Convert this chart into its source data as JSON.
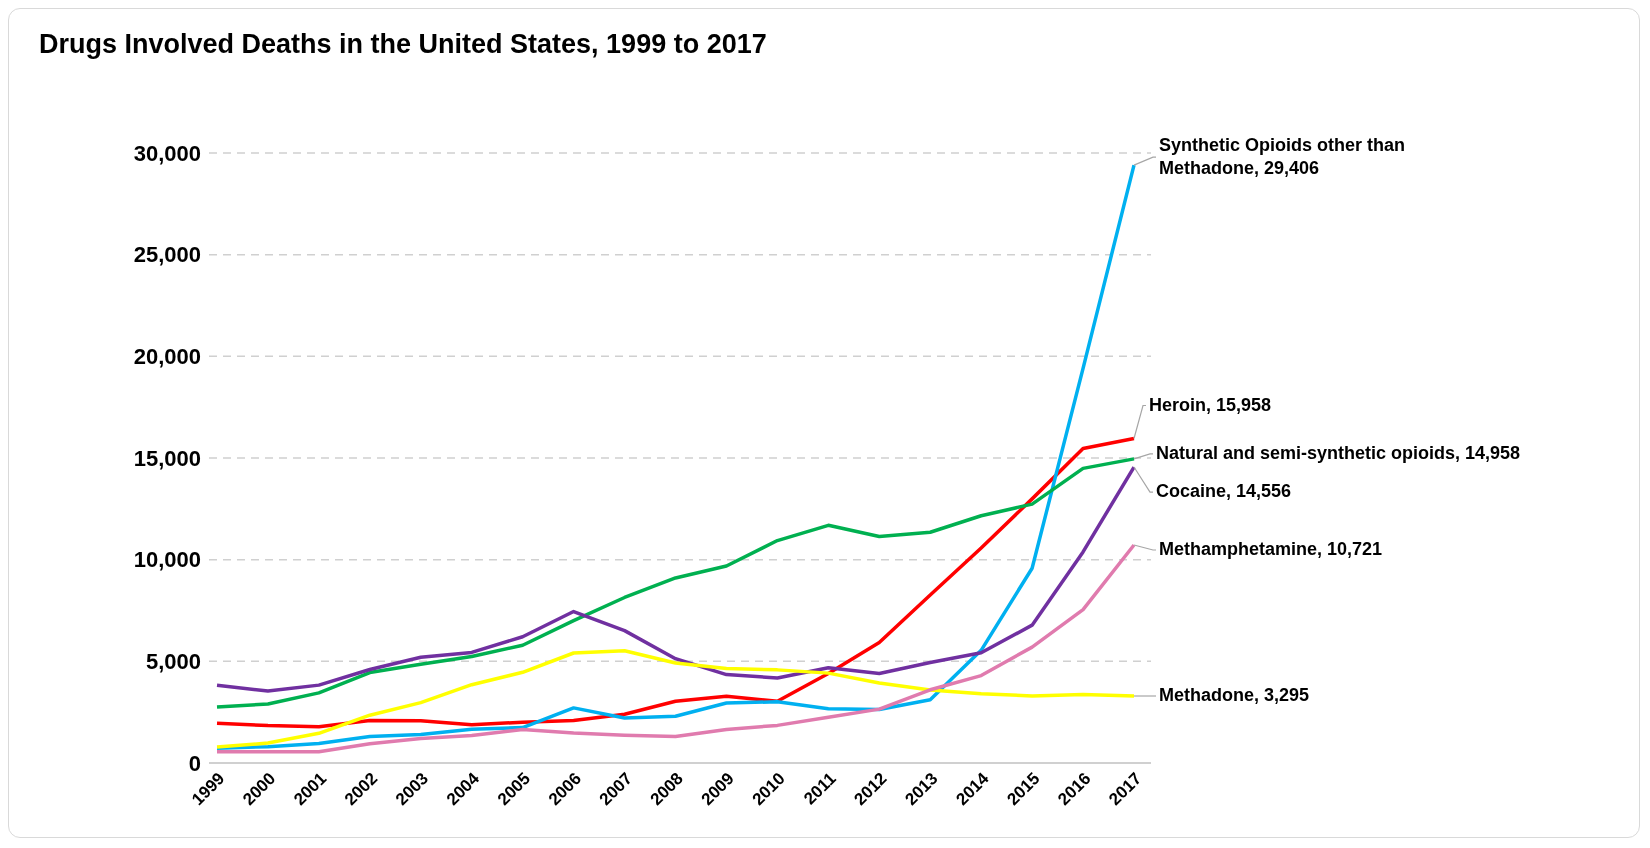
{
  "chart_data": {
    "type": "line",
    "title": "Drugs Involved Deaths in the United States, 1999 to 2017",
    "categories": [
      "1999",
      "2000",
      "2001",
      "2002",
      "2003",
      "2004",
      "2005",
      "2006",
      "2007",
      "2008",
      "2009",
      "2010",
      "2011",
      "2012",
      "2013",
      "2014",
      "2015",
      "2016",
      "2017"
    ],
    "series": [
      {
        "color": "#ff0000",
        "values": [
          1960,
          1840,
          1780,
          2090,
          2080,
          1880,
          2010,
          2090,
          2400,
          3040,
          3280,
          3040,
          4400,
          5930,
          8260,
          10570,
          12990,
          15470,
          15958
        ],
        "value_labels": [
          null,
          null,
          null,
          null,
          null,
          null,
          null,
          null,
          null,
          null,
          null,
          null,
          null,
          null,
          null,
          null,
          null,
          null,
          "Heroin, 15,958"
        ]
      },
      {
        "color": "#00b0f0",
        "values": [
          730,
          800,
          960,
          1300,
          1400,
          1660,
          1740,
          2710,
          2210,
          2300,
          2950,
          3010,
          2670,
          2630,
          3110,
          5540,
          9580,
          19410,
          29406
        ],
        "value_labels": [
          null,
          null,
          null,
          null,
          null,
          null,
          null,
          null,
          null,
          null,
          null,
          null,
          null,
          null,
          null,
          null,
          null,
          null,
          "Synthetic Opioids other than Methadone, 29,406"
        ]
      },
      {
        "color": "#00b050",
        "values": [
          2750,
          2900,
          3450,
          4450,
          4860,
          5240,
          5790,
          7000,
          8140,
          9100,
          9690,
          10940,
          11690,
          11140,
          11350,
          12160,
          12730,
          14490,
          14958
        ],
        "value_labels": [
          null,
          null,
          null,
          null,
          null,
          null,
          null,
          null,
          null,
          null,
          null,
          null,
          null,
          null,
          null,
          null,
          null,
          null,
          "Natural and semi-synthetic opioids, 14,958"
        ]
      },
      {
        "color": "#7030a0",
        "values": [
          3820,
          3540,
          3830,
          4600,
          5200,
          5440,
          6210,
          7450,
          6510,
          5130,
          4350,
          4180,
          4680,
          4400,
          4940,
          5420,
          6780,
          10380,
          14556
        ],
        "value_labels": [
          null,
          null,
          null,
          null,
          null,
          null,
          null,
          null,
          null,
          null,
          null,
          null,
          null,
          null,
          null,
          null,
          null,
          null,
          "Cocaine, 14,556"
        ]
      },
      {
        "color": "#ffff00",
        "values": [
          790,
          980,
          1460,
          2350,
          2970,
          3850,
          4460,
          5410,
          5520,
          4920,
          4650,
          4580,
          4420,
          3930,
          3590,
          3400,
          3300,
          3370,
          3295
        ],
        "value_labels": [
          null,
          null,
          null,
          null,
          null,
          null,
          null,
          null,
          null,
          null,
          null,
          null,
          null,
          null,
          null,
          null,
          null,
          null,
          "Methadone, 3,295"
        ]
      },
      {
        "color": "#e07bae",
        "values": [
          550,
          550,
          550,
          950,
          1200,
          1350,
          1650,
          1470,
          1370,
          1300,
          1650,
          1850,
          2250,
          2650,
          3600,
          4300,
          5700,
          7540,
          10721
        ],
        "value_labels": [
          null,
          null,
          null,
          null,
          null,
          null,
          null,
          null,
          null,
          null,
          null,
          null,
          null,
          null,
          null,
          null,
          null,
          null,
          "Methamphetamine, 10,721"
        ]
      }
    ],
    "ylim": [
      0,
      30000
    ],
    "yticks": [
      0,
      {
        "value": 5000,
        "label": "5,000"
      },
      {
        "value": 10000,
        "label": "10,000"
      },
      {
        "value": 15000,
        "label": "15,000"
      },
      {
        "value": 20000,
        "label": "20,000"
      },
      {
        "value": 25000,
        "label": "25,000"
      },
      {
        "value": 30000,
        "label": "30,000"
      }
    ],
    "grid": "y",
    "legend": false,
    "marker": "none",
    "line_style": "solid"
  }
}
